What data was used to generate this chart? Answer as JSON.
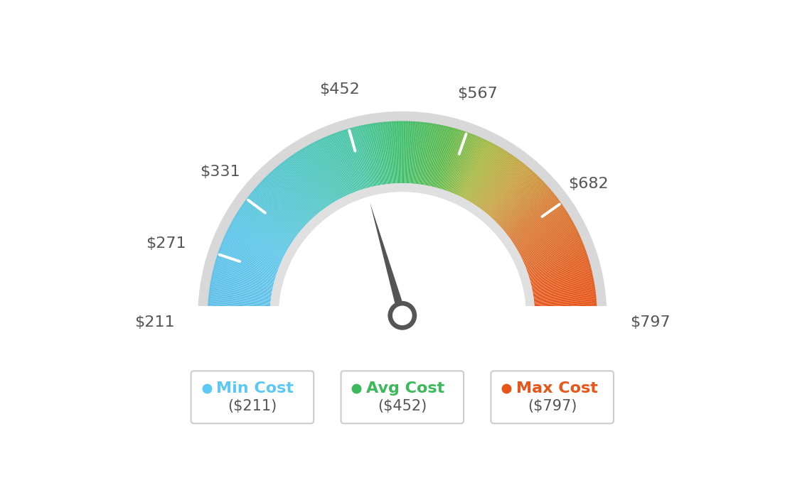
{
  "min_val": 211,
  "max_val": 797,
  "avg_val": 452,
  "tick_values": [
    211,
    271,
    331,
    452,
    567,
    682,
    797
  ],
  "color_stops_left_to_right": [
    [
      0.0,
      "#5BBDE8"
    ],
    [
      0.15,
      "#5AC5E8"
    ],
    [
      0.3,
      "#4DC5C5"
    ],
    [
      0.42,
      "#45C4A0"
    ],
    [
      0.5,
      "#3DBD6A"
    ],
    [
      0.58,
      "#5AB84A"
    ],
    [
      0.65,
      "#A8B840"
    ],
    [
      0.72,
      "#C8A040"
    ],
    [
      0.8,
      "#D87830"
    ],
    [
      0.9,
      "#E06020"
    ],
    [
      1.0,
      "#E84E10"
    ]
  ],
  "needle_color": "#555555",
  "outer_ring_color": "#D8D8D8",
  "inner_ring_color": "#E0E0E0",
  "legend_items": [
    {
      "label": "Min Cost",
      "value": "($211)",
      "color": "#5BC8F5"
    },
    {
      "label": "Avg Cost",
      "value": "($452)",
      "color": "#3DB85A"
    },
    {
      "label": "Max Cost",
      "value": "($797)",
      "color": "#E85518"
    }
  ],
  "background_color": "#FFFFFF",
  "text_color": "#555555",
  "label_fontsize": 16,
  "legend_label_fontsize": 16,
  "legend_value_fontsize": 15
}
